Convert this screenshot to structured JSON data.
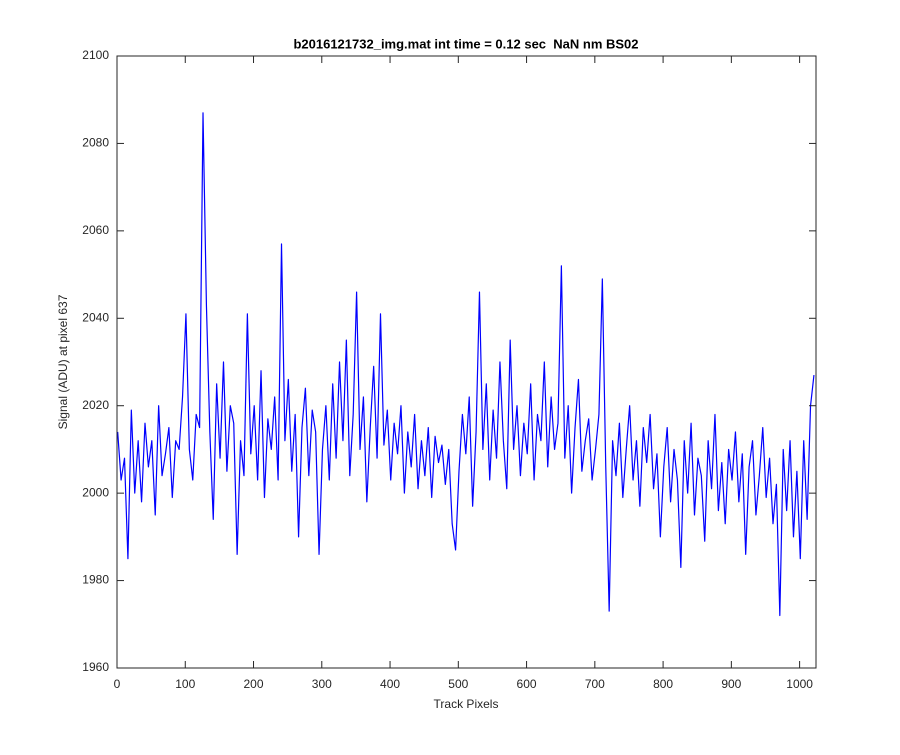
{
  "chart_data": {
    "type": "line",
    "title": "b2016121732_img.mat int time = 0.12 sec  NaN nm BS02",
    "x_label": "Track Pixels",
    "y_label": "Signal (ADU) at pixel 637",
    "xlim": [
      0,
      1024
    ],
    "xticks": [
      0,
      100,
      200,
      300,
      400,
      500,
      600,
      700,
      800,
      900,
      1000
    ],
    "ylim": [
      1960,
      2100
    ],
    "yticks": [
      1960,
      1980,
      2000,
      2020,
      2040,
      2060,
      2080,
      2100
    ],
    "grid": false,
    "series": [
      {
        "color": "#0000ff",
        "x": [
          1,
          6,
          11,
          16,
          21,
          26,
          31,
          36,
          41,
          46,
          51,
          56,
          61,
          66,
          71,
          76,
          81,
          86,
          91,
          96,
          101,
          106,
          111,
          116,
          121,
          126,
          131,
          136,
          141,
          146,
          151,
          156,
          161,
          166,
          171,
          176,
          181,
          186,
          191,
          196,
          201,
          206,
          211,
          216,
          221,
          226,
          231,
          236,
          241,
          246,
          251,
          256,
          261,
          266,
          271,
          276,
          281,
          286,
          291,
          296,
          301,
          306,
          311,
          316,
          321,
          326,
          331,
          336,
          341,
          346,
          351,
          356,
          361,
          366,
          371,
          376,
          381,
          386,
          391,
          396,
          401,
          406,
          411,
          416,
          421,
          426,
          431,
          436,
          441,
          446,
          451,
          456,
          461,
          466,
          471,
          476,
          481,
          486,
          491,
          496,
          501,
          506,
          511,
          516,
          521,
          526,
          531,
          536,
          541,
          546,
          551,
          556,
          561,
          566,
          571,
          576,
          581,
          586,
          591,
          596,
          601,
          606,
          611,
          616,
          621,
          626,
          631,
          636,
          641,
          646,
          651,
          656,
          661,
          666,
          671,
          676,
          681,
          686,
          691,
          696,
          701,
          706,
          711,
          716,
          721,
          726,
          731,
          736,
          741,
          746,
          751,
          756,
          761,
          766,
          771,
          776,
          781,
          786,
          791,
          796,
          801,
          806,
          811,
          816,
          821,
          826,
          831,
          836,
          841,
          846,
          851,
          856,
          861,
          866,
          871,
          876,
          881,
          886,
          891,
          896,
          901,
          906,
          911,
          916,
          921,
          926,
          931,
          936,
          941,
          946,
          951,
          956,
          961,
          966,
          971,
          976,
          981,
          986,
          991,
          996,
          1001,
          1006,
          1011,
          1016,
          1021
        ],
        "values": [
          2014,
          2003,
          2008,
          1985,
          2019,
          2000,
          2012,
          1998,
          2016,
          2006,
          2012,
          1995,
          2020,
          2004,
          2009,
          2015,
          1999,
          2012,
          2010,
          2022,
          2041,
          2010,
          2003,
          2018,
          2015,
          2087,
          2043,
          2014,
          1994,
          2025,
          2008,
          2030,
          2005,
          2020,
          2016,
          1986,
          2012,
          2004,
          2041,
          2009,
          2020,
          2003,
          2028,
          1999,
          2017,
          2010,
          2022,
          2003,
          2057,
          2012,
          2026,
          2005,
          2018,
          1990,
          2015,
          2024,
          2004,
          2019,
          2014,
          1986,
          2010,
          2020,
          2003,
          2025,
          2008,
          2030,
          2012,
          2035,
          2004,
          2018,
          2046,
          2010,
          2022,
          1998,
          2015,
          2029,
          2008,
          2041,
          2011,
          2019,
          2003,
          2016,
          2009,
          2020,
          2000,
          2014,
          2006,
          2018,
          2001,
          2012,
          2004,
          2015,
          1999,
          2013,
          2007,
          2011,
          2002,
          2010,
          1993,
          1987,
          2005,
          2018,
          2009,
          2022,
          1997,
          2014,
          2046,
          2010,
          2025,
          2003,
          2019,
          2008,
          2030,
          2012,
          2001,
          2035,
          2010,
          2020,
          2004,
          2016,
          2009,
          2025,
          2003,
          2018,
          2012,
          2030,
          2006,
          2022,
          2010,
          2016,
          2052,
          2008,
          2020,
          2000,
          2015,
          2026,
          2005,
          2012,
          2017,
          2003,
          2010,
          2018,
          2049,
          2006,
          1973,
          2012,
          2004,
          2016,
          1999,
          2010,
          2020,
          2003,
          2012,
          1997,
          2015,
          2007,
          2018,
          2001,
          2009,
          1990,
          2006,
          2015,
          1998,
          2010,
          2003,
          1983,
          2012,
          2000,
          2016,
          1995,
          2008,
          2004,
          1989,
          2012,
          2001,
          2018,
          1996,
          2007,
          1993,
          2010,
          2003,
          2014,
          1998,
          2009,
          1986,
          2006,
          2012,
          1995,
          2004,
          2015,
          1999,
          2008,
          1993,
          2002,
          1972,
          2010,
          1996,
          2012,
          1990,
          2005,
          1985,
          2012,
          1994,
          2020,
          2027
        ]
      }
    ]
  }
}
